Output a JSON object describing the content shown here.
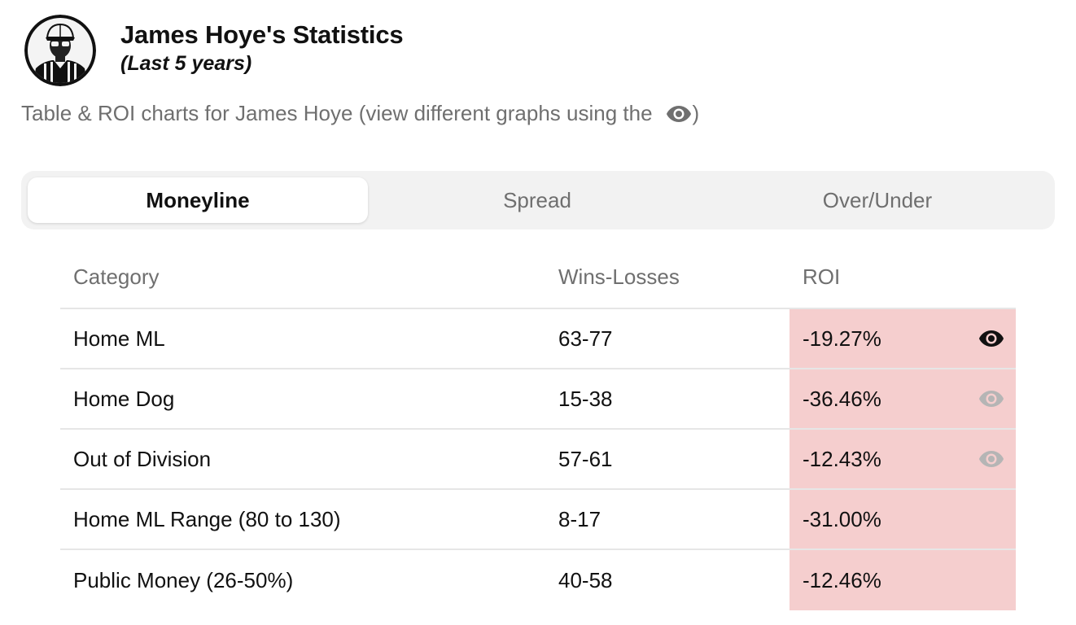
{
  "header": {
    "title": "James Hoye's Statistics",
    "subtitle": "(Last 5 years)",
    "avatar_icon": "referee-avatar"
  },
  "description": {
    "text": "Table & ROI charts for James Hoye (view different graphs using the",
    "icon": "eye-icon",
    "closing": ")"
  },
  "tabs": [
    {
      "label": "Moneyline",
      "active": true
    },
    {
      "label": "Spread",
      "active": false
    },
    {
      "label": "Over/Under",
      "active": false
    }
  ],
  "table": {
    "headers": {
      "category": "Category",
      "wins_losses": "Wins-Losses",
      "roi": "ROI"
    },
    "rows": [
      {
        "category": "Home ML",
        "wins_losses": "63-77",
        "roi": "-19.27%",
        "eye": "active"
      },
      {
        "category": "Home Dog",
        "wins_losses": "15-38",
        "roi": "-36.46%",
        "eye": "inactive"
      },
      {
        "category": "Out of Division",
        "wins_losses": "57-61",
        "roi": "-12.43%",
        "eye": "inactive"
      },
      {
        "category": "Home ML Range (80 to 130)",
        "wins_losses": "8-17",
        "roi": "-31.00%",
        "eye": "none"
      },
      {
        "category": "Public Money (26-50%)",
        "wins_losses": "40-58",
        "roi": "-12.46%",
        "eye": "none"
      }
    ]
  },
  "colors": {
    "negative_roi_bg": "#f5cece",
    "eye_active": "#111111",
    "eye_inactive": "#b5b5b5",
    "muted_text": "#6f6f6f",
    "tab_bar_bg": "#f2f2f2"
  }
}
